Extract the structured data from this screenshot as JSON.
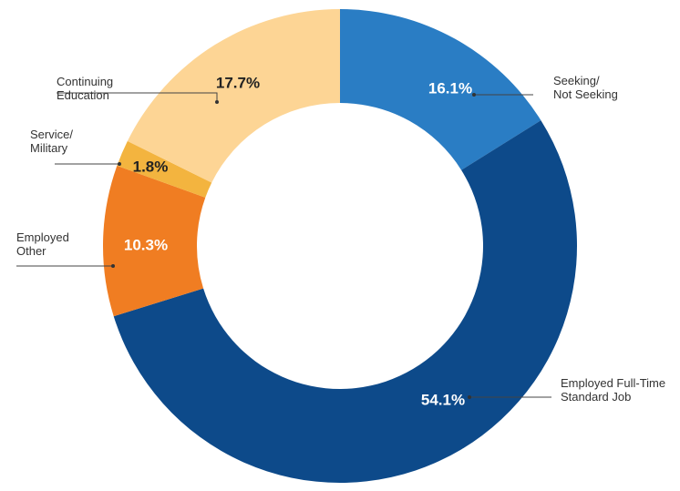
{
  "chart_data": {
    "type": "pie",
    "donut": true,
    "title": "",
    "slices": [
      {
        "label_lines": [
          "Seeking/",
          "Not Seeking"
        ],
        "value": 16.1,
        "value_label": "16.1%",
        "color": "#2a7dc4",
        "text_color": "#ffffff"
      },
      {
        "label_lines": [
          "Employed Full-Time",
          "Standard Job"
        ],
        "value": 54.1,
        "value_label": "54.1%",
        "color": "#0d4a8a",
        "text_color": "#ffffff"
      },
      {
        "label_lines": [
          "Employed",
          "Other"
        ],
        "value": 10.3,
        "value_label": "10.3%",
        "color": "#f07d22",
        "text_color": "#ffffff"
      },
      {
        "label_lines": [
          "Service/",
          "Military"
        ],
        "value": 1.8,
        "value_label": "1.8%",
        "color": "#f3b43f",
        "text_color": "#222222"
      },
      {
        "label_lines": [
          "Continuing",
          "Education"
        ],
        "value": 17.7,
        "value_label": "17.7%",
        "color": "#fdd595",
        "text_color": "#222222"
      }
    ]
  }
}
